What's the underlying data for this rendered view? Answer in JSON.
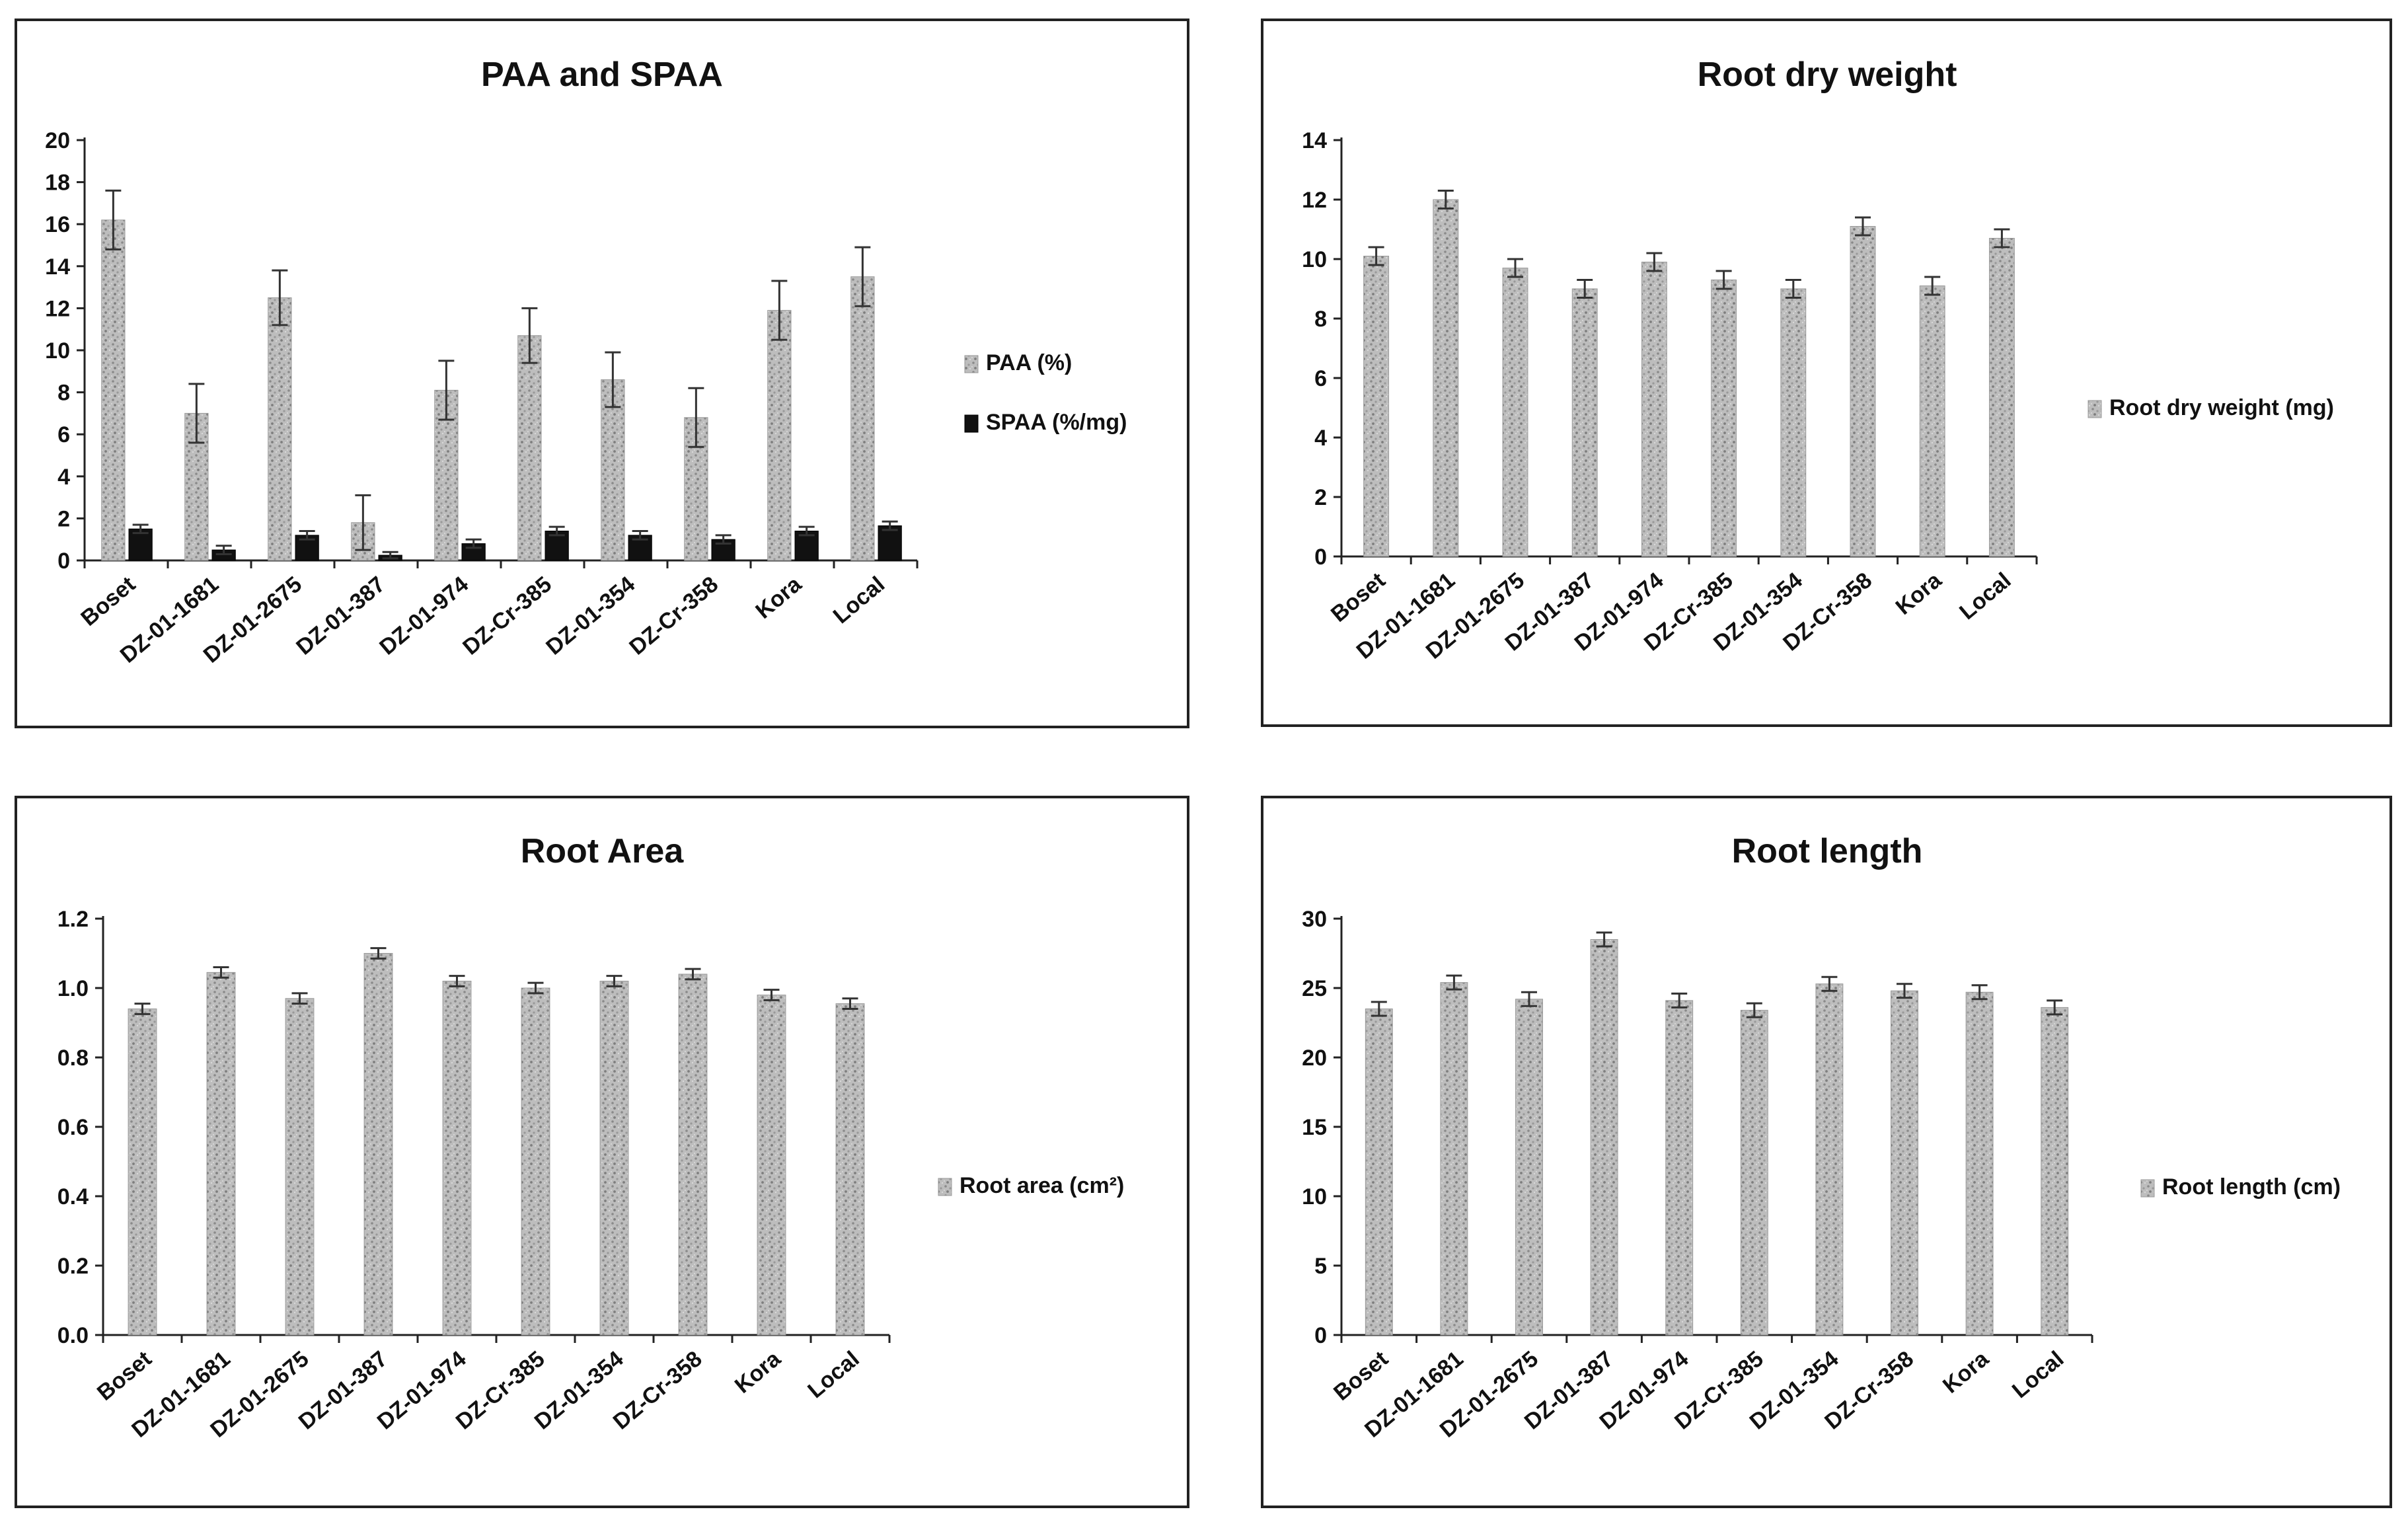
{
  "colors": {
    "bar_fill": "#b8b8b8",
    "bar_texture": "#8a8a8a",
    "spaa_fill": "#111111",
    "frame": "#222222",
    "axis": "#222222",
    "error_bar": "#333333"
  },
  "chart_data": [
    {
      "type": "bar",
      "title": "PAA and SPAA",
      "xlabel": "",
      "ylabel": "",
      "categories": [
        "Boset",
        "DZ-01-1681",
        "DZ-01-2675",
        "DZ-01-387",
        "DZ-01-974",
        "DZ-Cr-385",
        "DZ-01-354",
        "DZ-Cr-358",
        "Kora",
        "Local"
      ],
      "ylim": [
        0,
        20
      ],
      "yticks": [
        "0",
        "2",
        "4",
        "6",
        "8",
        "10",
        "12",
        "14",
        "16",
        "18",
        "20"
      ],
      "series": [
        {
          "name": "PAA (%)",
          "values": [
            16.2,
            7.0,
            12.5,
            1.8,
            8.1,
            10.7,
            8.6,
            6.8,
            11.9,
            13.5
          ],
          "errors": [
            1.4,
            1.4,
            1.3,
            1.3,
            1.4,
            1.3,
            1.3,
            1.4,
            1.4,
            1.4
          ]
        },
        {
          "name": "SPAA (%/mg)",
          "values": [
            1.5,
            0.5,
            1.2,
            0.25,
            0.8,
            1.4,
            1.2,
            1.0,
            1.4,
            1.65
          ],
          "errors": [
            0.2,
            0.2,
            0.2,
            0.15,
            0.2,
            0.2,
            0.2,
            0.2,
            0.2,
            0.2
          ]
        }
      ],
      "legend": "right"
    },
    {
      "type": "bar",
      "title": "Root dry weight",
      "xlabel": "",
      "ylabel": "",
      "categories": [
        "Boset",
        "DZ-01-1681",
        "DZ-01-2675",
        "DZ-01-387",
        "DZ-01-974",
        "DZ-Cr-385",
        "DZ-01-354",
        "DZ-Cr-358",
        "Kora",
        "Local"
      ],
      "ylim": [
        0,
        14
      ],
      "yticks": [
        "0",
        "2",
        "4",
        "6",
        "8",
        "10",
        "12",
        "14"
      ],
      "series": [
        {
          "name": "Root dry weight (mg)",
          "values": [
            10.1,
            12.0,
            9.7,
            9.0,
            9.9,
            9.3,
            9.0,
            11.1,
            9.1,
            10.7
          ],
          "errors": [
            0.3,
            0.3,
            0.3,
            0.3,
            0.3,
            0.3,
            0.3,
            0.3,
            0.3,
            0.3
          ]
        }
      ],
      "legend": "right"
    },
    {
      "type": "bar",
      "title": "Root Area",
      "xlabel": "",
      "ylabel": "",
      "categories": [
        "Boset",
        "DZ-01-1681",
        "DZ-01-2675",
        "DZ-01-387",
        "DZ-01-974",
        "DZ-Cr-385",
        "DZ-01-354",
        "DZ-Cr-358",
        "Kora",
        "Local"
      ],
      "ylim": [
        0,
        1.2
      ],
      "yticks": [
        "0.0",
        "0.2",
        "0.4",
        "0.6",
        "0.8",
        "1.0",
        "1.2"
      ],
      "series": [
        {
          "name": "Root area (cm²)",
          "values": [
            0.94,
            1.045,
            0.97,
            1.1,
            1.02,
            1.0,
            1.02,
            1.04,
            0.98,
            0.955
          ],
          "errors": [
            0.015,
            0.015,
            0.015,
            0.015,
            0.015,
            0.015,
            0.015,
            0.015,
            0.015,
            0.015
          ]
        }
      ],
      "legend": "right"
    },
    {
      "type": "bar",
      "title": "Root length",
      "xlabel": "",
      "ylabel": "",
      "categories": [
        "Boset",
        "DZ-01-1681",
        "DZ-01-2675",
        "DZ-01-387",
        "DZ-01-974",
        "DZ-Cr-385",
        "DZ-01-354",
        "DZ-Cr-358",
        "Kora",
        "Local"
      ],
      "ylim": [
        0,
        30
      ],
      "yticks": [
        "0",
        "5",
        "10",
        "15",
        "20",
        "25",
        "30"
      ],
      "series": [
        {
          "name": "Root length (cm)",
          "values": [
            23.5,
            25.4,
            24.2,
            28.5,
            24.1,
            23.4,
            25.3,
            24.8,
            24.7,
            23.6
          ],
          "errors": [
            0.5,
            0.5,
            0.5,
            0.5,
            0.5,
            0.5,
            0.5,
            0.5,
            0.5,
            0.5
          ]
        }
      ],
      "legend": "right"
    }
  ]
}
